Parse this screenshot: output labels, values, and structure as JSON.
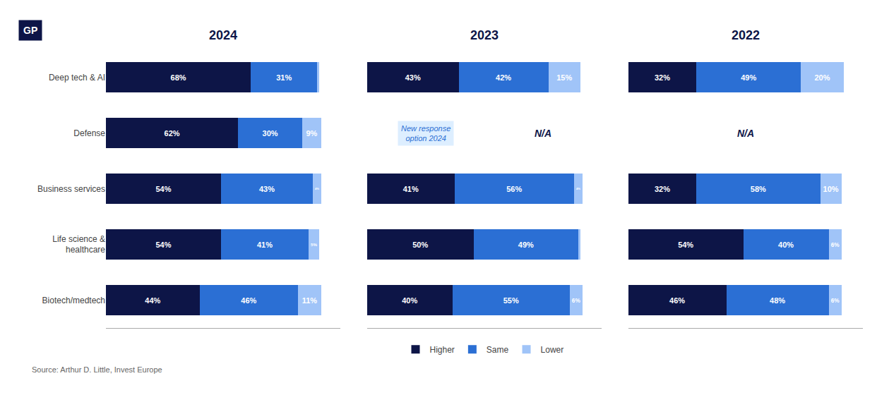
{
  "chart_data": [
    {
      "type": "bar",
      "title": "2024",
      "orientation": "horizontal",
      "stacked": true,
      "data_labels": true,
      "grid": false,
      "legend": "bottom",
      "tick_labels": "y",
      "categories": [
        "Deep tech & AI",
        "Defense",
        "Business services",
        "Life science &\nhealthcare",
        "Biotech/medtech"
      ],
      "xlim": [
        0,
        110
      ],
      "series": [
        {
          "name": "Higher",
          "color": "#0d1547",
          "values": [
            68,
            62,
            54,
            54,
            44
          ],
          "value_labels": [
            "68%",
            "62%",
            "54%",
            "54%",
            "44%"
          ]
        },
        {
          "name": "Same",
          "color": "#2b6fd4",
          "values": [
            31,
            30,
            43,
            41,
            46
          ],
          "value_labels": [
            "31%",
            "30%",
            "43%",
            "41%",
            "46%"
          ]
        },
        {
          "name": "Lower",
          "color": "#a0c4f8",
          "values": [
            1,
            9,
            4,
            5,
            11
          ],
          "value_labels": [
            null,
            "9%",
            "4%",
            "5%",
            "11%"
          ]
        }
      ],
      "annotations": [
        {
          "text": "GP"
        },
        {
          "text": "Source: Arthur D. Little, Invest Europe"
        }
      ]
    },
    {
      "type": "bar",
      "title": "2023",
      "orientation": "horizontal",
      "stacked": true,
      "data_labels": true,
      "grid": false,
      "tick_labels": false,
      "categories": [
        "Deep tech & AI",
        "Defense",
        "Business services",
        "Life science &\nhealthcare",
        "Biotech/medtech"
      ],
      "xlim": [
        0,
        110
      ],
      "series": [
        {
          "name": "Higher",
          "color": "#0d1547",
          "values": [
            43,
            null,
            41,
            50,
            40
          ],
          "value_labels": [
            "43%",
            null,
            "41%",
            "50%",
            "40%"
          ]
        },
        {
          "name": "Same",
          "color": "#2b6fd4",
          "values": [
            42,
            null,
            56,
            49,
            55
          ],
          "value_labels": [
            "42%",
            null,
            "56%",
            "49%",
            "55%"
          ]
        },
        {
          "name": "Lower",
          "color": "#a0c4f8",
          "values": [
            15,
            null,
            4,
            1,
            6
          ],
          "value_labels": [
            "15%",
            null,
            "4%",
            null,
            "6%"
          ]
        }
      ],
      "annotations": [
        {
          "text": "New response\noption 2024",
          "category": "Defense"
        },
        {
          "text": "N/A",
          "category": "Defense"
        }
      ]
    },
    {
      "type": "bar",
      "title": "2022",
      "orientation": "horizontal",
      "stacked": true,
      "data_labels": true,
      "grid": false,
      "tick_labels": false,
      "categories": [
        "Deep tech & AI",
        "Defense",
        "Business services",
        "Life science &\nhealthcare",
        "Biotech/medtech"
      ],
      "xlim": [
        0,
        110
      ],
      "series": [
        {
          "name": "Higher",
          "color": "#0d1547",
          "values": [
            32,
            null,
            32,
            54,
            46
          ],
          "value_labels": [
            "32%",
            null,
            "32%",
            "54%",
            "46%"
          ]
        },
        {
          "name": "Same",
          "color": "#2b6fd4",
          "values": [
            49,
            null,
            58,
            40,
            48
          ],
          "value_labels": [
            "49%",
            null,
            "58%",
            "40%",
            "48%"
          ]
        },
        {
          "name": "Lower",
          "color": "#a0c4f8",
          "values": [
            20,
            null,
            10,
            6,
            6
          ],
          "value_labels": [
            "20%",
            null,
            "10%",
            "6%",
            "6%"
          ]
        }
      ],
      "annotations": [
        {
          "text": "N/A",
          "category": "Defense"
        }
      ]
    }
  ]
}
